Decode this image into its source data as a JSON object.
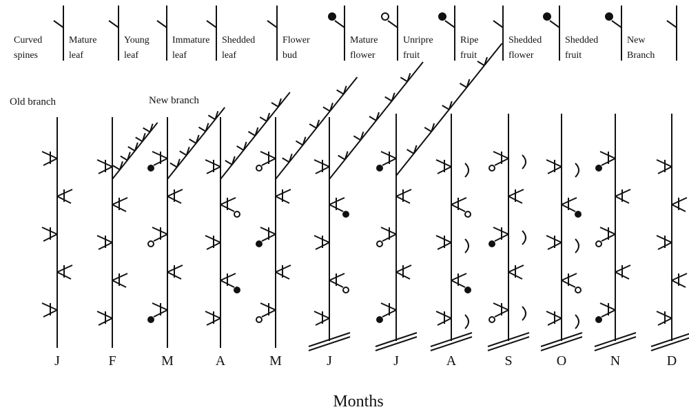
{
  "legend": [
    {
      "lines": [
        "Curved",
        "spines"
      ]
    },
    {
      "lines": [
        "Mature",
        "leaf"
      ]
    },
    {
      "lines": [
        "Young",
        "leaf"
      ]
    },
    {
      "lines": [
        "Immature",
        "leaf"
      ]
    },
    {
      "lines": [
        "Shedded",
        "leaf"
      ]
    },
    {
      "lines": [
        "Flower",
        "bud"
      ]
    },
    {
      "lines": [
        "Mature",
        "flower"
      ]
    },
    {
      "lines": [
        "Unripre",
        "fruit"
      ]
    },
    {
      "lines": [
        "Ripe",
        "fruit"
      ]
    },
    {
      "lines": [
        "Shedded",
        "flower"
      ]
    },
    {
      "lines": [
        "Shedded",
        "fruit"
      ]
    },
    {
      "lines": [
        "New",
        "Branch"
      ]
    }
  ],
  "annotations": {
    "old_branch": "Old branch",
    "new_branch": "New branch"
  },
  "months": [
    "J",
    "F",
    "M",
    "A",
    "M",
    "J",
    "J",
    "A",
    "S",
    "O",
    "N",
    "D"
  ],
  "axis_label": "Months"
}
